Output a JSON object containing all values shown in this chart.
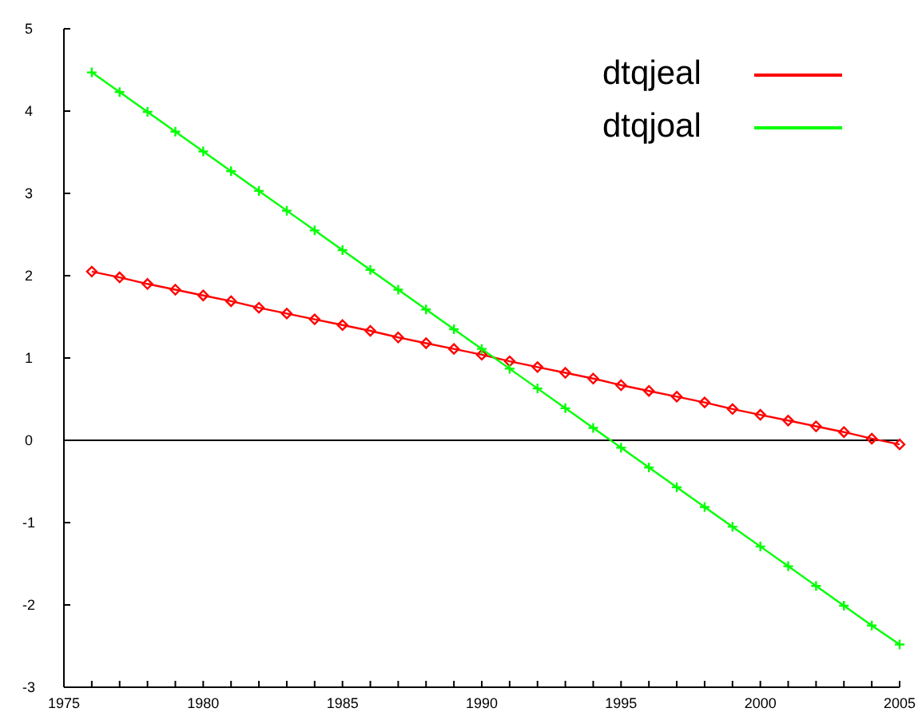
{
  "chart_data": {
    "type": "line",
    "x": [
      1976,
      1977,
      1978,
      1979,
      1980,
      1981,
      1982,
      1983,
      1984,
      1985,
      1986,
      1987,
      1988,
      1989,
      1990,
      1991,
      1992,
      1993,
      1994,
      1995,
      1996,
      1997,
      1998,
      1999,
      2000,
      2001,
      2002,
      2003,
      2004,
      2005
    ],
    "series": [
      {
        "name": "dtqjeal",
        "color": "#ff0000",
        "marker": "diamond",
        "values": [
          2.05,
          1.98,
          1.9,
          1.83,
          1.76,
          1.69,
          1.61,
          1.54,
          1.47,
          1.4,
          1.33,
          1.25,
          1.18,
          1.11,
          1.04,
          0.96,
          0.89,
          0.82,
          0.75,
          0.67,
          0.6,
          0.53,
          0.46,
          0.38,
          0.31,
          0.24,
          0.17,
          0.1,
          0.02,
          -0.05
        ]
      },
      {
        "name": "dtqjoal",
        "color": "#00ff00",
        "marker": "cross",
        "values": [
          4.47,
          4.23,
          3.99,
          3.75,
          3.51,
          3.27,
          3.03,
          2.79,
          2.55,
          2.31,
          2.07,
          1.83,
          1.59,
          1.35,
          1.11,
          0.87,
          0.63,
          0.39,
          0.15,
          -0.09,
          -0.33,
          -0.57,
          -0.81,
          -1.05,
          -1.29,
          -1.53,
          -1.77,
          -2.01,
          -2.25,
          -2.48
        ]
      }
    ],
    "xlim": [
      1975,
      2005
    ],
    "xticks": [
      1975,
      {
        "value": 1976,
        "label": null
      },
      {
        "value": 1977,
        "label": null
      },
      {
        "value": 1978,
        "label": null
      },
      {
        "value": 1979,
        "label": null
      },
      1980,
      {
        "value": 1981,
        "label": null
      },
      {
        "value": 1982,
        "label": null
      },
      {
        "value": 1983,
        "label": null
      },
      {
        "value": 1984,
        "label": null
      },
      1985,
      {
        "value": 1986,
        "label": null
      },
      {
        "value": 1987,
        "label": null
      },
      {
        "value": 1988,
        "label": null
      },
      {
        "value": 1989,
        "label": null
      },
      1990,
      {
        "value": 1991,
        "label": null
      },
      {
        "value": 1992,
        "label": null
      },
      {
        "value": 1993,
        "label": null
      },
      {
        "value": 1994,
        "label": null
      },
      1995,
      {
        "value": 1996,
        "label": null
      },
      {
        "value": 1997,
        "label": null
      },
      {
        "value": 1998,
        "label": null
      },
      {
        "value": 1999,
        "label": null
      },
      2000,
      {
        "value": 2001,
        "label": null
      },
      {
        "value": 2002,
        "label": null
      },
      {
        "value": 2003,
        "label": null
      },
      {
        "value": 2004,
        "label": null
      },
      2005
    ],
    "ylim": [
      -3,
      5
    ],
    "yticks": [
      -3,
      -2,
      -1,
      0,
      1,
      2,
      3,
      4,
      5
    ],
    "ref_lines": [
      {
        "axis": "y",
        "value": 0,
        "color": "#000000"
      }
    ],
    "legend": "top right",
    "grid": false,
    "line_style": "solid"
  }
}
